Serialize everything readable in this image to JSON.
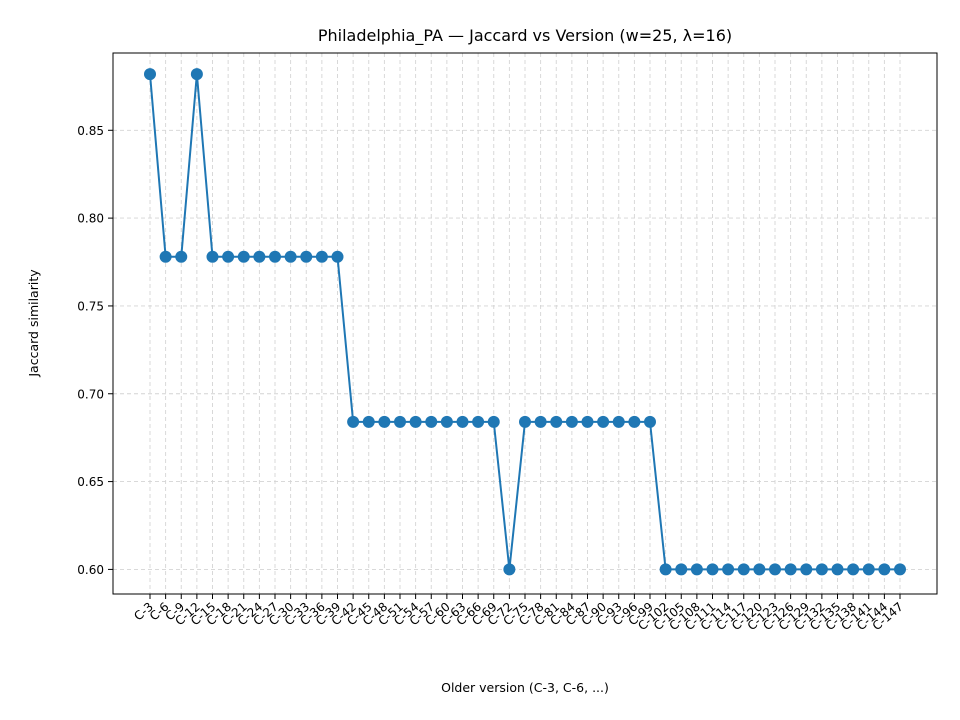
{
  "chart_data": {
    "type": "line",
    "title": "Philadelphia_PA — Jaccard vs Version (w=25, λ=16)",
    "xlabel": "Older version (C-3, C-6, ...)",
    "ylabel": "Jaccard similarity",
    "ylim": [
      0.586,
      0.894
    ],
    "yticks": [
      "0.60",
      "0.65",
      "0.70",
      "0.75",
      "0.80",
      "0.85"
    ],
    "grid": true,
    "series": [
      {
        "color": "#1f77b4",
        "x": [
          "C-3",
          "C-6",
          "C-9",
          "C-12",
          "C-15",
          "C-18",
          "C-21",
          "C-24",
          "C-27",
          "C-30",
          "C-33",
          "C-36",
          "C-39",
          "C-42",
          "C-45",
          "C-48",
          "C-51",
          "C-54",
          "C-57",
          "C-60",
          "C-63",
          "C-66",
          "C-69",
          "C-72",
          "C-75",
          "C-78",
          "C-81",
          "C-84",
          "C-87",
          "C-90",
          "C-93",
          "C-96",
          "C-99",
          "C-102",
          "C-105",
          "C-108",
          "C-111",
          "C-114",
          "C-117",
          "C-120",
          "C-123",
          "C-126",
          "C-129",
          "C-132",
          "C-135",
          "C-138",
          "C-141",
          "C-144",
          "C-147"
        ],
        "values": [
          0.882,
          0.778,
          0.778,
          0.882,
          0.778,
          0.778,
          0.778,
          0.778,
          0.778,
          0.778,
          0.778,
          0.778,
          0.778,
          0.684,
          0.684,
          0.684,
          0.684,
          0.684,
          0.684,
          0.684,
          0.684,
          0.684,
          0.684,
          0.6,
          0.684,
          0.684,
          0.684,
          0.684,
          0.684,
          0.684,
          0.684,
          0.684,
          0.684,
          0.6,
          0.6,
          0.6,
          0.6,
          0.6,
          0.6,
          0.6,
          0.6,
          0.6,
          0.6,
          0.6,
          0.6,
          0.6,
          0.6,
          0.6,
          0.6
        ]
      }
    ]
  }
}
